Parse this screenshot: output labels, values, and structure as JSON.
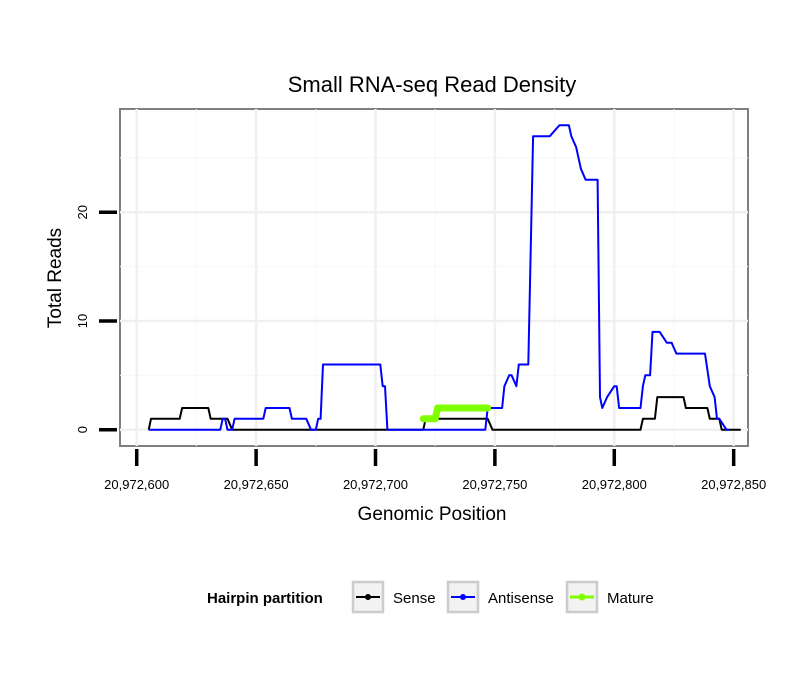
{
  "chart_data": {
    "type": "line",
    "title": "Small RNA-seq Read Density",
    "xlabel": "Genomic Position",
    "ylabel": "Total Reads",
    "xlim": [
      20972593,
      20972856
    ],
    "ylim": [
      -1.5,
      29.5
    ],
    "x_ticks": [
      {
        "value": 20972600,
        "label": "20,972,600"
      },
      {
        "value": 20972650,
        "label": "20,972,650"
      },
      {
        "value": 20972700,
        "label": "20,972,700"
      },
      {
        "value": 20972750,
        "label": "20,972,750"
      },
      {
        "value": 20972800,
        "label": "20,972,800"
      },
      {
        "value": 20972850,
        "label": "20,972,850"
      }
    ],
    "y_ticks": [
      {
        "value": 0,
        "label": "0"
      },
      {
        "value": 10,
        "label": "10"
      },
      {
        "value": 20,
        "label": "20"
      }
    ],
    "grid": true,
    "legend": {
      "title": "Hairpin partition",
      "position": "bottom",
      "entries": [
        {
          "name": "Sense",
          "color": "#000000"
        },
        {
          "name": "Antisense",
          "color": "#0000ff"
        },
        {
          "name": "Mature",
          "color": "#80ff00"
        }
      ]
    },
    "series": [
      {
        "name": "Sense",
        "color": "#000000",
        "x": [
          20972605,
          20972606,
          20972618,
          20972619,
          20972630,
          20972631,
          20972638,
          20972640,
          20972720,
          20972721,
          20972747,
          20972749,
          20972811,
          20972812,
          20972817,
          20972818,
          20972829,
          20972830,
          20972839,
          20972840,
          20972844,
          20972845,
          20972853
        ],
        "values": [
          0,
          1,
          1,
          2,
          2,
          1,
          1,
          0,
          0,
          1,
          1,
          0,
          0,
          1,
          1,
          3,
          3,
          2,
          2,
          1,
          1,
          0,
          0
        ]
      },
      {
        "name": "Antisense",
        "color": "#0000ff",
        "x": [
          20972605,
          20972635,
          20972636,
          20972637,
          20972638,
          20972640,
          20972641,
          20972653,
          20972654,
          20972660,
          20972661,
          20972664,
          20972665,
          20972671,
          20972673,
          20972675,
          20972676,
          20972677,
          20972678,
          20972680,
          20972690,
          20972702,
          20972703,
          20972704,
          20972705,
          20972718,
          20972719,
          20972720,
          20972724,
          20972746,
          20972747,
          20972753,
          20972754,
          20972756,
          20972757,
          20972759,
          20972760,
          20972764,
          20972766,
          20972770,
          20972773,
          20972777,
          20972778,
          20972781,
          20972782,
          20972784,
          20972785,
          20972786,
          20972788,
          20972792,
          20972793,
          20972794,
          20972795,
          20972797,
          20972800,
          20972801,
          20972802,
          20972810,
          20972811,
          20972812,
          20972813,
          20972815,
          20972816,
          20972817,
          20972818,
          20972819,
          20972822,
          20972824,
          20972826,
          20972827,
          20972838,
          20972840,
          20972842,
          20972843,
          20972844,
          20972847,
          20972848
        ],
        "values": [
          0,
          0,
          1,
          1,
          0,
          0,
          1,
          1,
          2,
          2,
          2,
          2,
          1,
          1,
          0,
          0,
          1,
          1,
          6,
          6,
          6,
          6,
          4,
          4,
          0,
          0,
          0,
          0,
          0,
          0,
          2,
          2,
          4,
          5,
          5,
          4,
          6,
          6,
          27,
          27,
          27,
          28,
          28,
          28,
          27,
          26,
          25,
          24,
          23,
          23,
          23,
          3,
          2,
          3,
          4,
          4,
          2,
          2,
          2,
          4,
          5,
          5,
          9,
          9,
          9,
          9,
          8,
          8,
          7,
          7,
          7,
          4,
          3,
          1,
          1,
          0,
          0
        ]
      },
      {
        "name": "Mature",
        "color": "#80ff00",
        "x": [
          20972720,
          20972721,
          20972725,
          20972726,
          20972727,
          20972747
        ],
        "values": [
          1,
          1,
          1,
          2,
          2,
          2
        ]
      }
    ]
  }
}
